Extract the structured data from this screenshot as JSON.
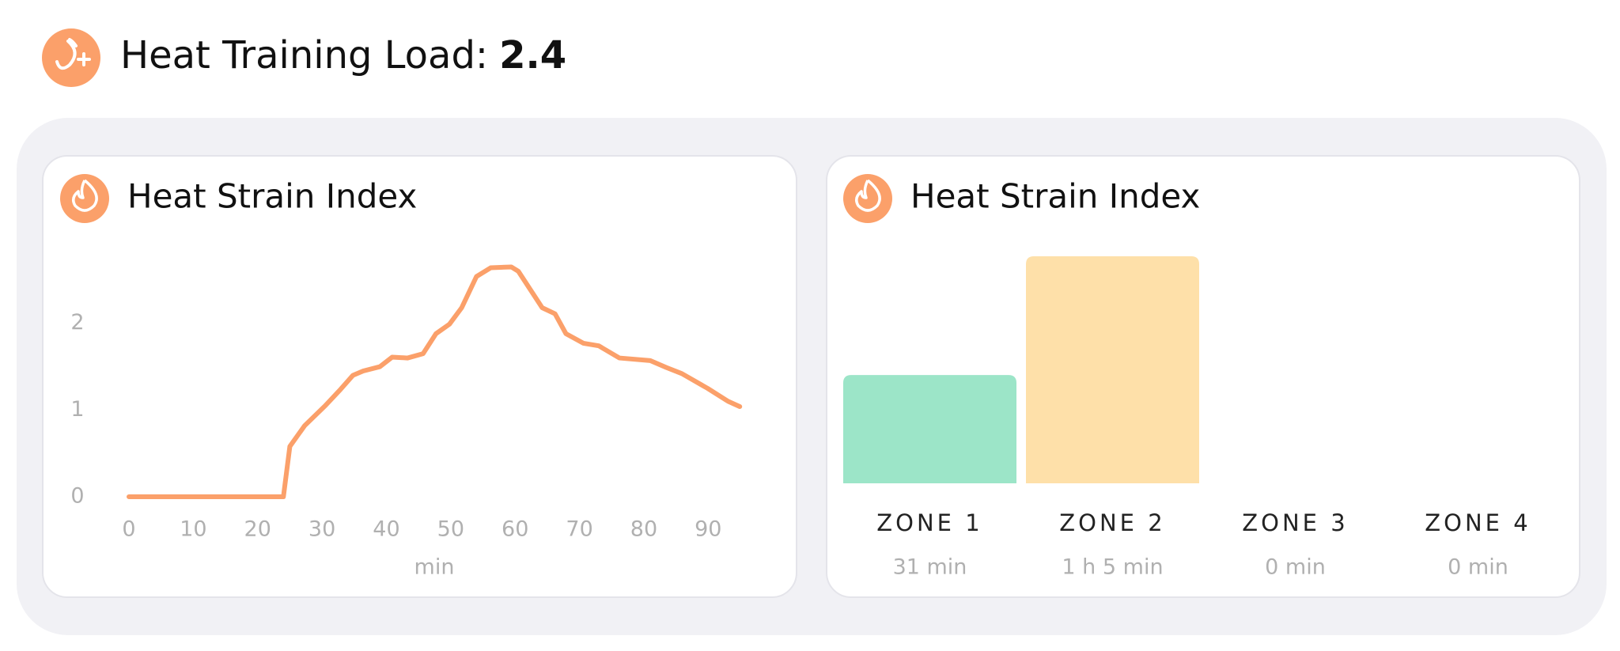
{
  "header": {
    "title": "Heat Training Load:",
    "value": 2.4
  },
  "chart_data": [
    {
      "type": "line",
      "title": "Heat Strain Index",
      "xlabel": "min",
      "color": "#fba06a",
      "x": [
        0,
        24,
        25,
        27.3,
        30.5,
        32.9,
        34.8,
        36.4,
        39,
        40.9,
        43.3,
        45.7,
        47.7,
        49.8,
        51.7,
        54,
        56.2,
        59.4,
        60.5,
        64.2,
        66.2,
        67.9,
        70.6,
        73,
        76.2,
        81,
        83.5,
        85.9,
        89.9,
        93.1,
        94.9
      ],
      "values": [
        0,
        0,
        0.58,
        0.82,
        1.05,
        1.24,
        1.4,
        1.45,
        1.5,
        1.61,
        1.6,
        1.65,
        1.88,
        1.99,
        2.18,
        2.54,
        2.64,
        2.65,
        2.6,
        2.18,
        2.11,
        1.88,
        1.77,
        1.74,
        1.6,
        1.57,
        1.49,
        1.42,
        1.25,
        1.1,
        1.04
      ],
      "xlim": [
        0,
        95
      ],
      "xticks": [
        0,
        10,
        20,
        30,
        40,
        50,
        60,
        70,
        80,
        90
      ],
      "ylim": [
        0,
        2.8
      ],
      "yticks": [
        0,
        1,
        2
      ]
    },
    {
      "type": "bar",
      "title": "Heat Strain Index",
      "categories": [
        "ZONE 1",
        "ZONE 2",
        "ZONE 3",
        "ZONE 4"
      ],
      "values": [
        31,
        65,
        0,
        0
      ],
      "value_labels": [
        "31 min",
        "1 h 5 min",
        "0 min",
        "0 min"
      ],
      "colors": [
        "#9ce5c8",
        "#fee0a9",
        "#fcc49a",
        "#f7a3a3"
      ],
      "ylim": [
        0,
        65
      ]
    }
  ]
}
